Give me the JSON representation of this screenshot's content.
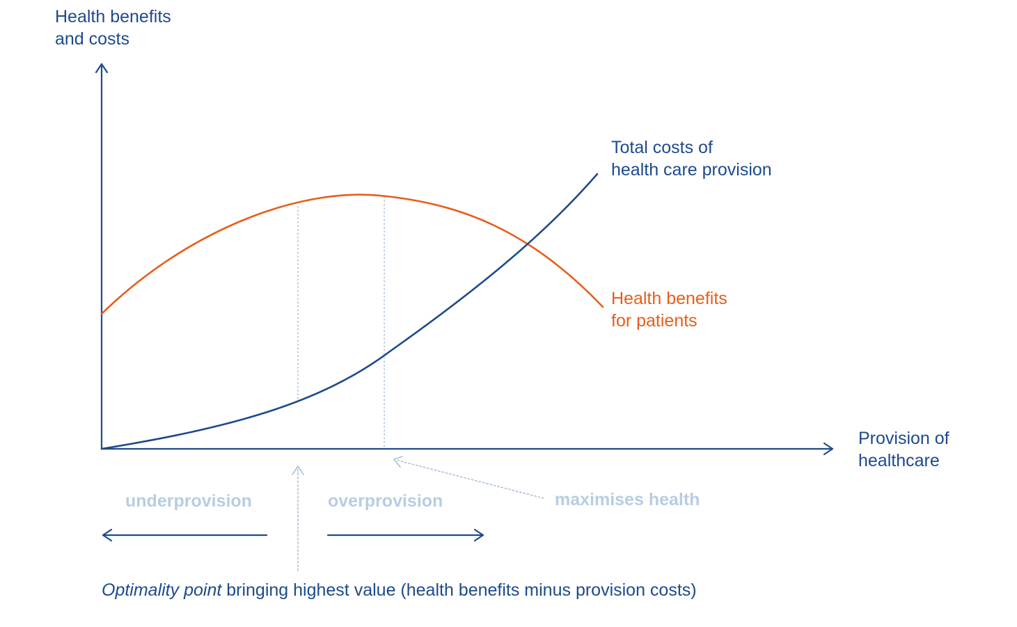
{
  "colors": {
    "primary_blue": "#1d4a8c",
    "orange": "#e85d1a",
    "light_blue": "#b7cde3",
    "guide_blue": "#9fb8d3"
  },
  "axes": {
    "y_label_line1": "Health benefits",
    "y_label_line2": "and costs",
    "x_label_line1": "Provision of",
    "x_label_line2": "healthcare"
  },
  "curves": {
    "costs_label_line1": "Total costs of",
    "costs_label_line2": "health care provision",
    "benefits_label_line1": "Health benefits",
    "benefits_label_line2": "for patients"
  },
  "annotations": {
    "underprovision": "underprovision",
    "overprovision": "overprovision",
    "maximises_health": "maximises health",
    "optimality_italic": "Optimality point",
    "optimality_rest": " bringing highest value (health benefits minus provision costs)"
  }
}
